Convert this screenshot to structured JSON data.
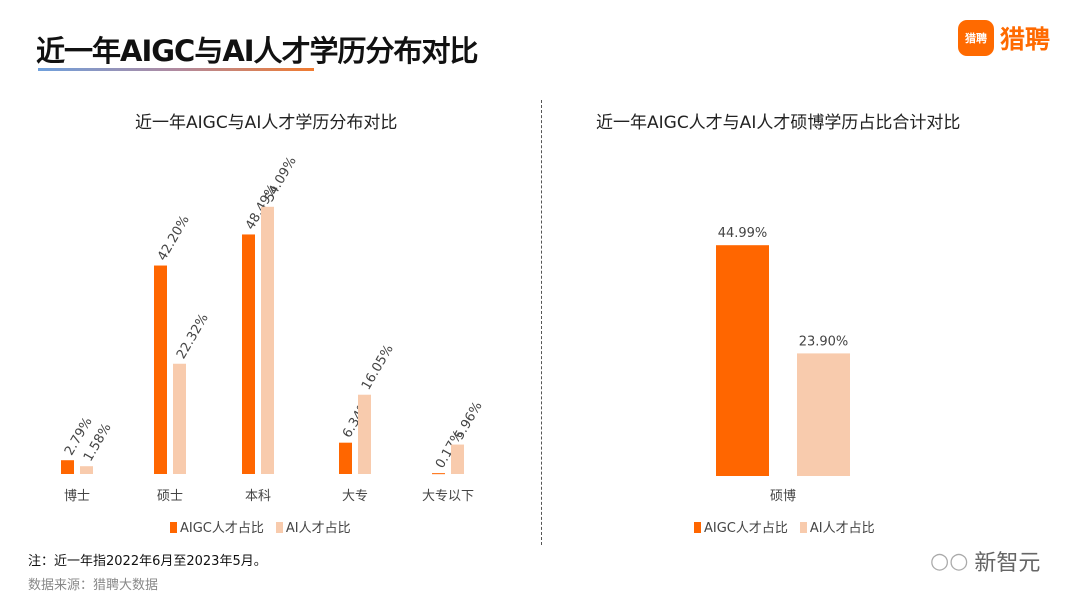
{
  "header": {
    "title": "近一年AIGC与AI人才学历分布对比",
    "logo_badge": "猎聘",
    "logo_text": "猎聘"
  },
  "colors": {
    "aigc": "#ff6600",
    "ai": "#f8cbad"
  },
  "chart_data": [
    {
      "type": "bar",
      "title": "近一年AIGC与AI人才学历分布对比",
      "categories": [
        "博士",
        "硕士",
        "本科",
        "大专",
        "大专以下"
      ],
      "series": [
        {
          "name": "AIGC人才占比",
          "values": [
            2.79,
            42.2,
            48.49,
            6.34,
            0.17
          ]
        },
        {
          "name": "AI人才占比",
          "values": [
            1.58,
            22.32,
            54.09,
            16.05,
            5.96
          ]
        }
      ],
      "labels": [
        [
          "2.79%",
          "42.20%",
          "48.49%",
          "6.34%",
          "0.17%"
        ],
        [
          "1.58%",
          "22.32%",
          "54.09%",
          "16.05%",
          "5.96%"
        ]
      ],
      "legend": "bottom",
      "grid": false
    },
    {
      "type": "bar",
      "title": "近一年AIGC人才与AI人才硕博学历占比合计对比",
      "categories": [
        "硕博"
      ],
      "series": [
        {
          "name": "AIGC人才占比",
          "values": [
            44.99
          ]
        },
        {
          "name": "AI人才占比",
          "values": [
            23.9
          ]
        }
      ],
      "labels": [
        [
          "44.99%"
        ],
        [
          "23.90%"
        ]
      ],
      "legend": "bottom",
      "grid": false
    }
  ],
  "footer": {
    "note": "注：近一年指2022年6月至2023年5月。",
    "source": "数据来源：猎聘大数据",
    "watermark": "新智元"
  }
}
